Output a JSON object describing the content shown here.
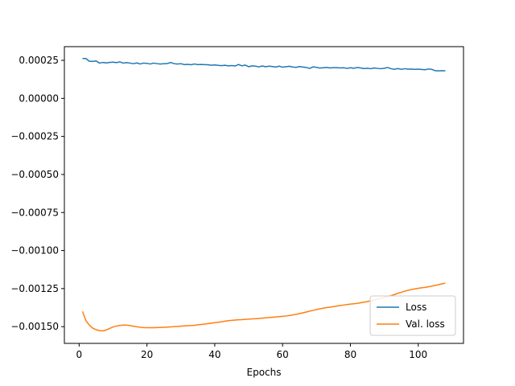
{
  "chart_data": {
    "type": "line",
    "title": "",
    "xlabel": "Epochs",
    "ylabel": "",
    "xlim": [
      -4.35,
      113.35
    ],
    "ylim": [
      -0.00161,
      0.00034
    ],
    "xticks": [
      0,
      20,
      40,
      60,
      80,
      100
    ],
    "xtick_labels": [
      "0",
      "20",
      "40",
      "60",
      "80",
      "100"
    ],
    "yticks": [
      0.00025,
      0.0,
      -0.00025,
      -0.0005,
      -0.00075,
      -0.001,
      -0.00125,
      -0.0015
    ],
    "ytick_labels": [
      "0.00025",
      "0.00000",
      "−0.00025",
      "−0.00050",
      "−0.00075",
      "−0.00100",
      "−0.00125",
      "−0.00150"
    ],
    "grid": false,
    "legend_position": "lower-right",
    "series": [
      {
        "name": "Loss",
        "color": "#1f77b4",
        "x": [
          1,
          2,
          3,
          4,
          5,
          6,
          7,
          8,
          9,
          10,
          11,
          12,
          13,
          14,
          15,
          16,
          17,
          18,
          19,
          20,
          21,
          22,
          23,
          24,
          25,
          26,
          27,
          28,
          29,
          30,
          31,
          32,
          33,
          34,
          35,
          36,
          37,
          38,
          39,
          40,
          41,
          42,
          43,
          44,
          45,
          46,
          47,
          48,
          49,
          50,
          51,
          52,
          53,
          54,
          55,
          56,
          57,
          58,
          59,
          60,
          61,
          62,
          63,
          64,
          65,
          66,
          67,
          68,
          69,
          70,
          71,
          72,
          73,
          74,
          75,
          76,
          77,
          78,
          79,
          80,
          81,
          82,
          83,
          84,
          85,
          86,
          87,
          88,
          89,
          90,
          91,
          92,
          93,
          94,
          95,
          96,
          97,
          98,
          99,
          100,
          101,
          102,
          103,
          104,
          105,
          106,
          107,
          108
        ],
        "values": [
          0.000262,
          0.000262,
          0.000244,
          0.000243,
          0.000246,
          0.000232,
          0.000236,
          0.000233,
          0.000236,
          0.000238,
          0.000235,
          0.00024,
          0.000232,
          0.000235,
          0.000232,
          0.000228,
          0.000233,
          0.000226,
          0.000232,
          0.00023,
          0.000226,
          0.000232,
          0.000228,
          0.000226,
          0.000228,
          0.000229,
          0.000236,
          0.000228,
          0.000226,
          0.000228,
          0.000222,
          0.000224,
          0.000221,
          0.000226,
          0.000222,
          0.000223,
          0.000222,
          0.000221,
          0.000218,
          0.00022,
          0.000217,
          0.000215,
          0.000218,
          0.000214,
          0.000216,
          0.000213,
          0.000223,
          0.000214,
          0.000219,
          0.000208,
          0.000214,
          0.000212,
          0.000207,
          0.000213,
          0.000208,
          0.000212,
          0.000209,
          0.000206,
          0.000212,
          0.000205,
          0.000208,
          0.000211,
          0.000206,
          0.000204,
          0.000209,
          0.000206,
          0.000203,
          0.000197,
          0.000207,
          0.000204,
          0.000199,
          0.000201,
          0.000203,
          0.0002,
          0.000202,
          0.000202,
          0.0002,
          0.000201,
          0.000197,
          0.000201,
          0.000198,
          0.000203,
          0.0002,
          0.000196,
          0.000198,
          0.000195,
          0.0002,
          0.000197,
          0.000195,
          0.000198,
          0.000203,
          0.000195,
          0.000191,
          0.000196,
          0.000191,
          0.000195,
          0.000192,
          0.000193,
          0.000191,
          0.000192,
          0.00019,
          0.000188,
          0.000193,
          0.000191,
          0.000182,
          0.000181,
          0.000182,
          0.000181
        ]
      },
      {
        "name": "Val. loss",
        "color": "#ff7f0e",
        "x": [
          1,
          2,
          3,
          4,
          5,
          6,
          7,
          8,
          9,
          10,
          11,
          12,
          13,
          14,
          15,
          16,
          17,
          18,
          19,
          20,
          21,
          22,
          23,
          24,
          25,
          26,
          27,
          28,
          29,
          30,
          31,
          32,
          33,
          34,
          35,
          36,
          37,
          38,
          39,
          40,
          41,
          42,
          43,
          44,
          45,
          46,
          47,
          48,
          49,
          50,
          51,
          52,
          53,
          54,
          55,
          56,
          57,
          58,
          59,
          60,
          61,
          62,
          63,
          64,
          65,
          66,
          67,
          68,
          69,
          70,
          71,
          72,
          73,
          74,
          75,
          76,
          77,
          78,
          79,
          80,
          81,
          82,
          83,
          84,
          85,
          86,
          87,
          88,
          89,
          90,
          91,
          92,
          93,
          94,
          95,
          96,
          97,
          98,
          99,
          100,
          101,
          102,
          103,
          104,
          105,
          106,
          107,
          108
        ],
        "values": [
          -0.0014,
          -0.00146,
          -0.00149,
          -0.00151,
          -0.00152,
          -0.001526,
          -0.001528,
          -0.001522,
          -0.001512,
          -0.001502,
          -0.001496,
          -0.001492,
          -0.00149,
          -0.00149,
          -0.001493,
          -0.001497,
          -0.001501,
          -0.001504,
          -0.001506,
          -0.001507,
          -0.001507,
          -0.001507,
          -0.001506,
          -0.001505,
          -0.001504,
          -0.001503,
          -0.001502,
          -0.0015,
          -0.001499,
          -0.001497,
          -0.001495,
          -0.001494,
          -0.001493,
          -0.001491,
          -0.001488,
          -0.001486,
          -0.001483,
          -0.00148,
          -0.001477,
          -0.001474,
          -0.001471,
          -0.001468,
          -0.001464,
          -0.001461,
          -0.001459,
          -0.001457,
          -0.001455,
          -0.001454,
          -0.001452,
          -0.001451,
          -0.001449,
          -0.001448,
          -0.001446,
          -0.001444,
          -0.001442,
          -0.00144,
          -0.001438,
          -0.001436,
          -0.001434,
          -0.001432,
          -0.00143,
          -0.001427,
          -0.001423,
          -0.001419,
          -0.001414,
          -0.001409,
          -0.001404,
          -0.001398,
          -0.001393,
          -0.001388,
          -0.001383,
          -0.001379,
          -0.001375,
          -0.001372,
          -0.001368,
          -0.001365,
          -0.001361,
          -0.001358,
          -0.001355,
          -0.001352,
          -0.00135,
          -0.001347,
          -0.001343,
          -0.001339,
          -0.001335,
          -0.00133,
          -0.001325,
          -0.001319,
          -0.001314,
          -0.001308,
          -0.001302,
          -0.001296,
          -0.001289,
          -0.001281,
          -0.001274,
          -0.001267,
          -0.001261,
          -0.001256,
          -0.001252,
          -0.001248,
          -0.001245,
          -0.001242,
          -0.001238,
          -0.001234,
          -0.001229,
          -0.001224,
          -0.001219,
          -0.001214
        ]
      }
    ]
  }
}
